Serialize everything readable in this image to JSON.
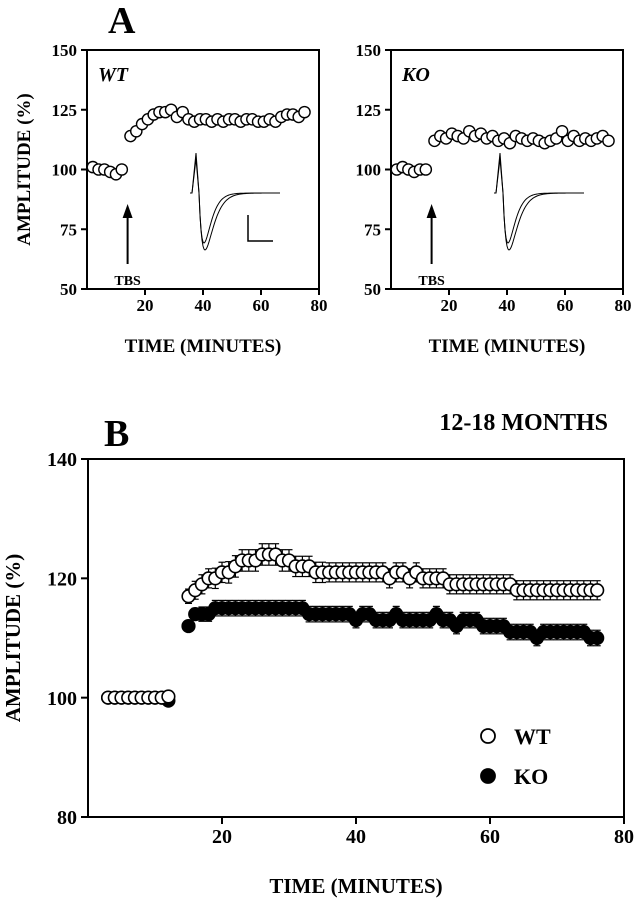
{
  "panel_letters": {
    "a": "A",
    "b": "B"
  },
  "chart_data": [
    {
      "type": "scatter",
      "panel": "A",
      "inset_label": "WT",
      "xlabel": "TIME (MINUTES)",
      "ylabel": "AMPLITUDE (%)",
      "xlim": [
        0,
        80
      ],
      "ylim": [
        50,
        150
      ],
      "xticks": [
        20,
        40,
        60,
        80
      ],
      "yticks": [
        50,
        75,
        100,
        125,
        150
      ],
      "annotation": "TBS",
      "annotation_x": 14,
      "x": [
        2,
        4,
        6,
        8,
        10,
        12,
        15,
        17,
        19,
        21,
        23,
        25,
        27,
        29,
        31,
        33,
        35,
        37,
        39,
        41,
        43,
        45,
        47,
        49,
        51,
        53,
        55,
        57,
        59,
        61,
        63,
        65,
        67,
        69,
        71,
        73,
        75
      ],
      "y": [
        101,
        100,
        100,
        99,
        98,
        100,
        114,
        116,
        119,
        121,
        123,
        124,
        124,
        125,
        122,
        124,
        121,
        120,
        121,
        121,
        120,
        121,
        120,
        121,
        121,
        120,
        121,
        121,
        120,
        120,
        121,
        120,
        122,
        123,
        123,
        122,
        124
      ],
      "colors": {
        "marker_fill": "#ffffff",
        "marker_edge": "#000000"
      }
    },
    {
      "type": "scatter",
      "panel": "A",
      "inset_label": "KO",
      "xlabel": "TIME (MINUTES)",
      "ylabel": "",
      "xlim": [
        0,
        80
      ],
      "ylim": [
        50,
        150
      ],
      "xticks": [
        20,
        40,
        60,
        80
      ],
      "yticks": [
        50,
        75,
        100,
        125,
        150
      ],
      "annotation": "TBS",
      "annotation_x": 14,
      "x": [
        2,
        4,
        6,
        8,
        10,
        12,
        15,
        17,
        19,
        21,
        23,
        25,
        27,
        29,
        31,
        33,
        35,
        37,
        39,
        41,
        43,
        45,
        47,
        49,
        51,
        53,
        55,
        57,
        59,
        61,
        63,
        65,
        67,
        69,
        71,
        73,
        75
      ],
      "y": [
        100,
        101,
        100,
        99,
        100,
        100,
        112,
        114,
        113,
        115,
        114,
        113,
        116,
        114,
        115,
        113,
        114,
        112,
        113,
        111,
        114,
        113,
        112,
        113,
        112,
        111,
        112,
        113,
        116,
        112,
        114,
        112,
        113,
        112,
        113,
        114,
        112
      ],
      "colors": {
        "marker_fill": "#ffffff",
        "marker_edge": "#000000"
      }
    },
    {
      "type": "scatter",
      "panel": "B",
      "title": "12-18 MONTHS",
      "xlabel": "TIME (MINUTES)",
      "ylabel": "AMPLITUDE (%)",
      "xlim": [
        0,
        80
      ],
      "ylim": [
        80,
        140
      ],
      "xticks": [
        20,
        40,
        60,
        80
      ],
      "yticks": [
        80,
        100,
        120,
        140
      ],
      "legend_position": "bottom-right",
      "x": [
        3,
        4,
        5,
        6,
        7,
        8,
        9,
        10,
        11,
        12,
        15,
        16,
        17,
        18,
        19,
        20,
        21,
        22,
        23,
        24,
        25,
        26,
        27,
        28,
        29,
        30,
        31,
        32,
        33,
        34,
        35,
        36,
        37,
        38,
        39,
        40,
        41,
        42,
        43,
        44,
        45,
        46,
        47,
        48,
        49,
        50,
        51,
        52,
        53,
        54,
        55,
        56,
        57,
        58,
        59,
        60,
        61,
        62,
        63,
        64,
        65,
        66,
        67,
        68,
        69,
        70,
        71,
        72,
        73,
        74,
        75,
        76
      ],
      "series": [
        {
          "name": "WT",
          "values": [
            100,
            100,
            100,
            100,
            100,
            100,
            100,
            100,
            100,
            100.2,
            117,
            118,
            119,
            120,
            120,
            121,
            121,
            122,
            123,
            123,
            123,
            124,
            124,
            124,
            123,
            123,
            122,
            122,
            122,
            121,
            121,
            121,
            121,
            121,
            121,
            121,
            121,
            121,
            121,
            121,
            120,
            121,
            121,
            120,
            121,
            120,
            120,
            120,
            120,
            119,
            119,
            119,
            119,
            119,
            119,
            119,
            119,
            119,
            119,
            118,
            118,
            118,
            118,
            118,
            118,
            118,
            118,
            118,
            118,
            118,
            118,
            118
          ],
          "errors": [
            0.5,
            0.5,
            0.5,
            0.5,
            0.5,
            0.5,
            0.5,
            0.5,
            0.5,
            0.5,
            1.2,
            1.5,
            1.6,
            1.6,
            1.7,
            1.7,
            1.8,
            1.8,
            1.8,
            1.8,
            1.8,
            1.8,
            1.8,
            1.8,
            1.8,
            1.8,
            1.7,
            1.7,
            1.7,
            1.7,
            1.7,
            1.6,
            1.6,
            1.6,
            1.6,
            1.6,
            1.6,
            1.6,
            1.6,
            1.6,
            1.6,
            1.6,
            1.6,
            1.6,
            1.6,
            1.6,
            1.6,
            1.6,
            1.6,
            1.6,
            1.6,
            1.6,
            1.6,
            1.6,
            1.6,
            1.6,
            1.6,
            1.6,
            1.6,
            1.6,
            1.6,
            1.6,
            1.6,
            1.6,
            1.6,
            1.6,
            1.6,
            1.6,
            1.6,
            1.6,
            1.6,
            1.6
          ],
          "fill": "#ffffff"
        },
        {
          "name": "KO",
          "values": [
            100,
            100,
            100,
            100,
            100,
            100,
            100,
            100,
            100,
            99.5,
            112,
            114,
            114,
            114,
            115,
            115,
            115,
            115,
            115,
            115,
            115,
            115,
            115,
            115,
            115,
            115,
            115,
            115,
            114,
            114,
            114,
            114,
            114,
            114,
            114,
            113,
            114,
            114,
            113,
            113,
            113,
            114,
            113,
            113,
            113,
            113,
            113,
            114,
            113,
            113,
            112,
            113,
            113,
            113,
            112,
            112,
            112,
            112,
            111,
            111,
            111,
            111,
            110,
            111,
            111,
            111,
            111,
            111,
            111,
            111,
            110,
            110
          ],
          "errors": [
            0.5,
            0.5,
            0.5,
            0.5,
            0.5,
            0.5,
            0.5,
            0.5,
            0.5,
            0.5,
            0.8,
            1,
            1.2,
            1.2,
            1.3,
            1.3,
            1.3,
            1.3,
            1.3,
            1.3,
            1.3,
            1.3,
            1.3,
            1.3,
            1.3,
            1.3,
            1.3,
            1.3,
            1.3,
            1.3,
            1.3,
            1.3,
            1.3,
            1.3,
            1.3,
            1.3,
            1.3,
            1.3,
            1.3,
            1.3,
            1.3,
            1.3,
            1.3,
            1.3,
            1.3,
            1.3,
            1.3,
            1.3,
            1.3,
            1.3,
            1.3,
            1.3,
            1.3,
            1.3,
            1.3,
            1.3,
            1.3,
            1.3,
            1.3,
            1.3,
            1.3,
            1.3,
            1.3,
            1.3,
            1.3,
            1.3,
            1.3,
            1.3,
            1.3,
            1.3,
            1.3,
            1.3
          ],
          "fill": "#000000"
        }
      ]
    }
  ]
}
